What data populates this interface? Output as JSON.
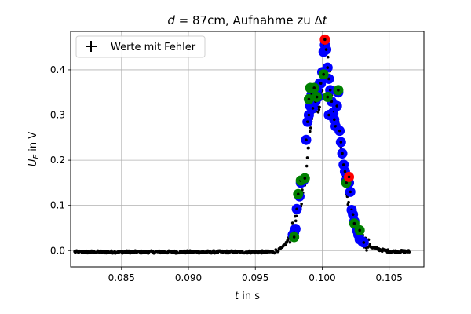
{
  "chart_data": {
    "type": "scatter",
    "title": {
      "d": "d",
      "rest": " = 87cm, Aufnahme zu Δ",
      "t": "t"
    },
    "xlabel": {
      "var": "t",
      "rest": " in s"
    },
    "ylabel": {
      "var": "U",
      "sub": "F",
      "rest": " in V"
    },
    "xlim": [
      0.0812,
      0.1076
    ],
    "ylim": [
      -0.036,
      0.485
    ],
    "xticks": [
      "0.085",
      "0.090",
      "0.095",
      "0.100",
      "0.105"
    ],
    "yticks": [
      "0.0",
      "0.1",
      "0.2",
      "0.3",
      "0.4"
    ],
    "grid": true,
    "legend": {
      "position": "top-left",
      "entries": [
        "Werte mit Fehler"
      ]
    },
    "colors": {
      "black": "#000000",
      "blue": "#0000ff",
      "green": "#008000",
      "red": "#ff0000",
      "grid": "#b0b0b0"
    },
    "blue_points": [
      [
        0.0978,
        0.035
      ],
      [
        0.098,
        0.048
      ],
      [
        0.0981,
        0.092
      ],
      [
        0.0983,
        0.12
      ],
      [
        0.0984,
        0.15
      ],
      [
        0.0986,
        0.155
      ],
      [
        0.0988,
        0.245
      ],
      [
        0.0989,
        0.285
      ],
      [
        0.099,
        0.3
      ],
      [
        0.0991,
        0.32
      ],
      [
        0.0992,
        0.345
      ],
      [
        0.0993,
        0.315
      ],
      [
        0.0995,
        0.33
      ],
      [
        0.0996,
        0.355
      ],
      [
        0.0997,
        0.34
      ],
      [
        0.0998,
        0.37
      ],
      [
        0.0999,
        0.37
      ],
      [
        0.1,
        0.395
      ],
      [
        0.1001,
        0.44
      ],
      [
        0.1002,
        0.455
      ],
      [
        0.1003,
        0.445
      ],
      [
        0.1004,
        0.405
      ],
      [
        0.1005,
        0.38
      ],
      [
        0.1006,
        0.355
      ],
      [
        0.1007,
        0.33
      ],
      [
        0.1008,
        0.305
      ],
      [
        0.1009,
        0.29
      ],
      [
        0.101,
        0.275
      ],
      [
        0.1011,
        0.32
      ],
      [
        0.1012,
        0.35
      ],
      [
        0.1013,
        0.265
      ],
      [
        0.1014,
        0.24
      ],
      [
        0.1015,
        0.215
      ],
      [
        0.1016,
        0.19
      ],
      [
        0.1017,
        0.175
      ],
      [
        0.1018,
        0.155
      ],
      [
        0.102,
        0.15
      ],
      [
        0.1021,
        0.13
      ],
      [
        0.1022,
        0.09
      ],
      [
        0.1023,
        0.08
      ],
      [
        0.1024,
        0.065
      ],
      [
        0.1026,
        0.045
      ],
      [
        0.1027,
        0.035
      ],
      [
        0.1028,
        0.025
      ],
      [
        0.103,
        0.02
      ],
      [
        0.1031,
        0.018
      ],
      [
        0.0979,
        0.04
      ],
      [
        0.1005,
        0.3
      ]
    ],
    "green_points": [
      [
        0.0979,
        0.03
      ],
      [
        0.0982,
        0.125
      ],
      [
        0.0984,
        0.155
      ],
      [
        0.0987,
        0.16
      ],
      [
        0.099,
        0.335
      ],
      [
        0.0991,
        0.36
      ],
      [
        0.0994,
        0.36
      ],
      [
        0.0996,
        0.34
      ],
      [
        0.1001,
        0.39
      ],
      [
        0.1004,
        0.34
      ],
      [
        0.1012,
        0.355
      ],
      [
        0.1018,
        0.15
      ],
      [
        0.1024,
        0.06
      ],
      [
        0.1028,
        0.045
      ]
    ],
    "red_points": [
      [
        0.1002,
        0.467
      ],
      [
        0.102,
        0.163
      ]
    ],
    "black_points_description": "dense small black dots following the same curve from 0.0815 to 0.1065"
  }
}
